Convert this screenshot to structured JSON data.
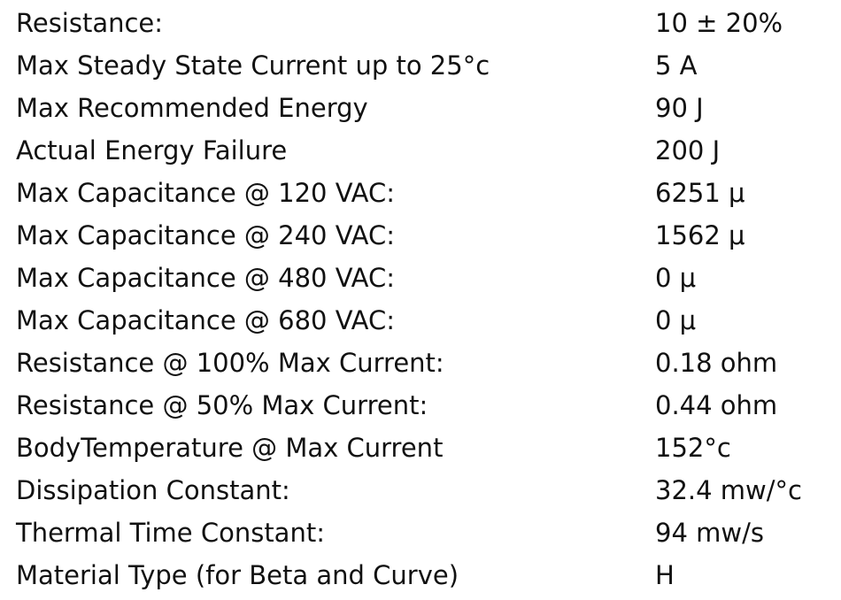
{
  "specs": [
    {
      "label": "Resistance:",
      "value": "10 ± 20%"
    },
    {
      "label": "Max Steady State Current up to 25°c",
      "value": "5 A"
    },
    {
      "label": "Max Recommended Energy",
      "value": "90 J"
    },
    {
      "label": "Actual Energy Failure",
      "value": "200 J"
    },
    {
      "label": "Max Capacitance @ 120 VAC:",
      "value": "6251 μ"
    },
    {
      "label": "Max Capacitance @ 240 VAC:",
      "value": "1562 μ"
    },
    {
      "label": "Max Capacitance @ 480 VAC:",
      "value": "0 μ"
    },
    {
      "label": "Max Capacitance @ 680 VAC:",
      "value": "0 μ"
    },
    {
      "label": "Resistance @ 100% Max Current:",
      "value": "0.18 ohm"
    },
    {
      "label": "Resistance @ 50% Max Current:",
      "value": "0.44 ohm"
    },
    {
      "label": "BodyTemperature @ Max Current",
      "value": "152°c"
    },
    {
      "label": "Dissipation Constant:",
      "value": "32.4 mw/°c"
    },
    {
      "label": "Thermal Time Constant:",
      "value": "94 mw/s"
    },
    {
      "label": "Material Type (for Beta and Curve)",
      "value": "H"
    }
  ]
}
